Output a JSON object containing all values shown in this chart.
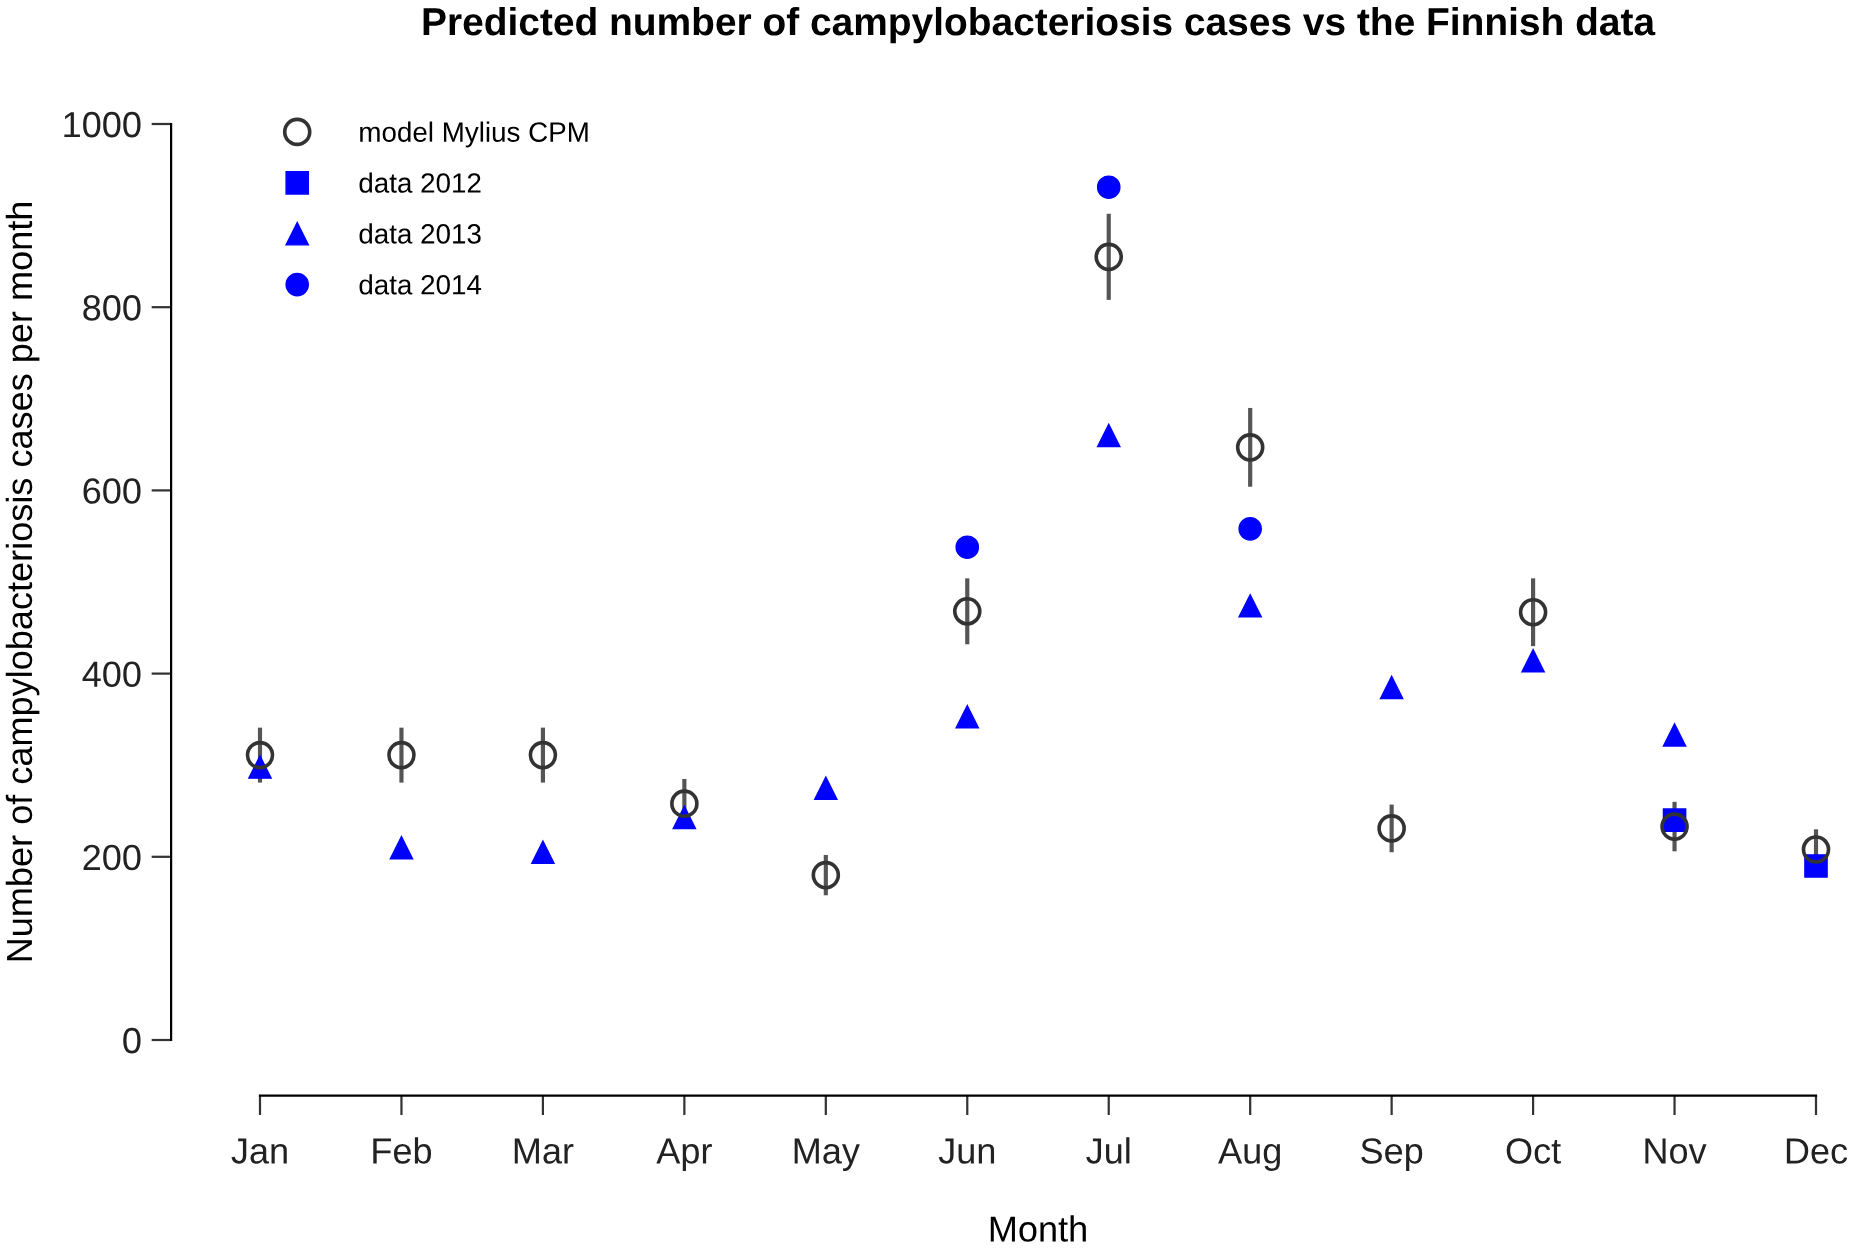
{
  "chart_data": {
    "type": "scatter",
    "title": "Predicted number of campylobacteriosis cases vs the Finnish data",
    "xlabel": "Month",
    "ylabel": "Number of campylobacteriosis cases per month",
    "categories": [
      "Jan",
      "Feb",
      "Mar",
      "Apr",
      "May",
      "Jun",
      "Jul",
      "Aug",
      "Sep",
      "Oct",
      "Nov",
      "Dec"
    ],
    "ylim": [
      0,
      1000
    ],
    "yticks": [
      0,
      200,
      400,
      600,
      800,
      1000
    ],
    "grid": false,
    "legend": "top left",
    "series": [
      {
        "name": "model Mylius CPM",
        "color": "#333333",
        "marker": "circle",
        "values": [
          311,
          311,
          311,
          258,
          180,
          468,
          855,
          647,
          231,
          467,
          233,
          208
        ],
        "errors": [
          30,
          30,
          30,
          27,
          22,
          36,
          47,
          43,
          26,
          37,
          27,
          22
        ]
      },
      {
        "name": "data 2012",
        "color": "#0000ff",
        "marker": "square",
        "values": [
          null,
          null,
          null,
          null,
          null,
          null,
          null,
          null,
          null,
          null,
          240,
          190
        ]
      },
      {
        "name": "data 2013",
        "color": "#0000ff",
        "marker": "triangle",
        "values": [
          298,
          210,
          205,
          243,
          275,
          353,
          660,
          474,
          385,
          414,
          333,
          null
        ]
      },
      {
        "name": "data 2014",
        "color": "#0000ff",
        "marker": "circle",
        "values": [
          null,
          null,
          null,
          null,
          null,
          538,
          931,
          558,
          null,
          null,
          null,
          null
        ]
      }
    ]
  }
}
